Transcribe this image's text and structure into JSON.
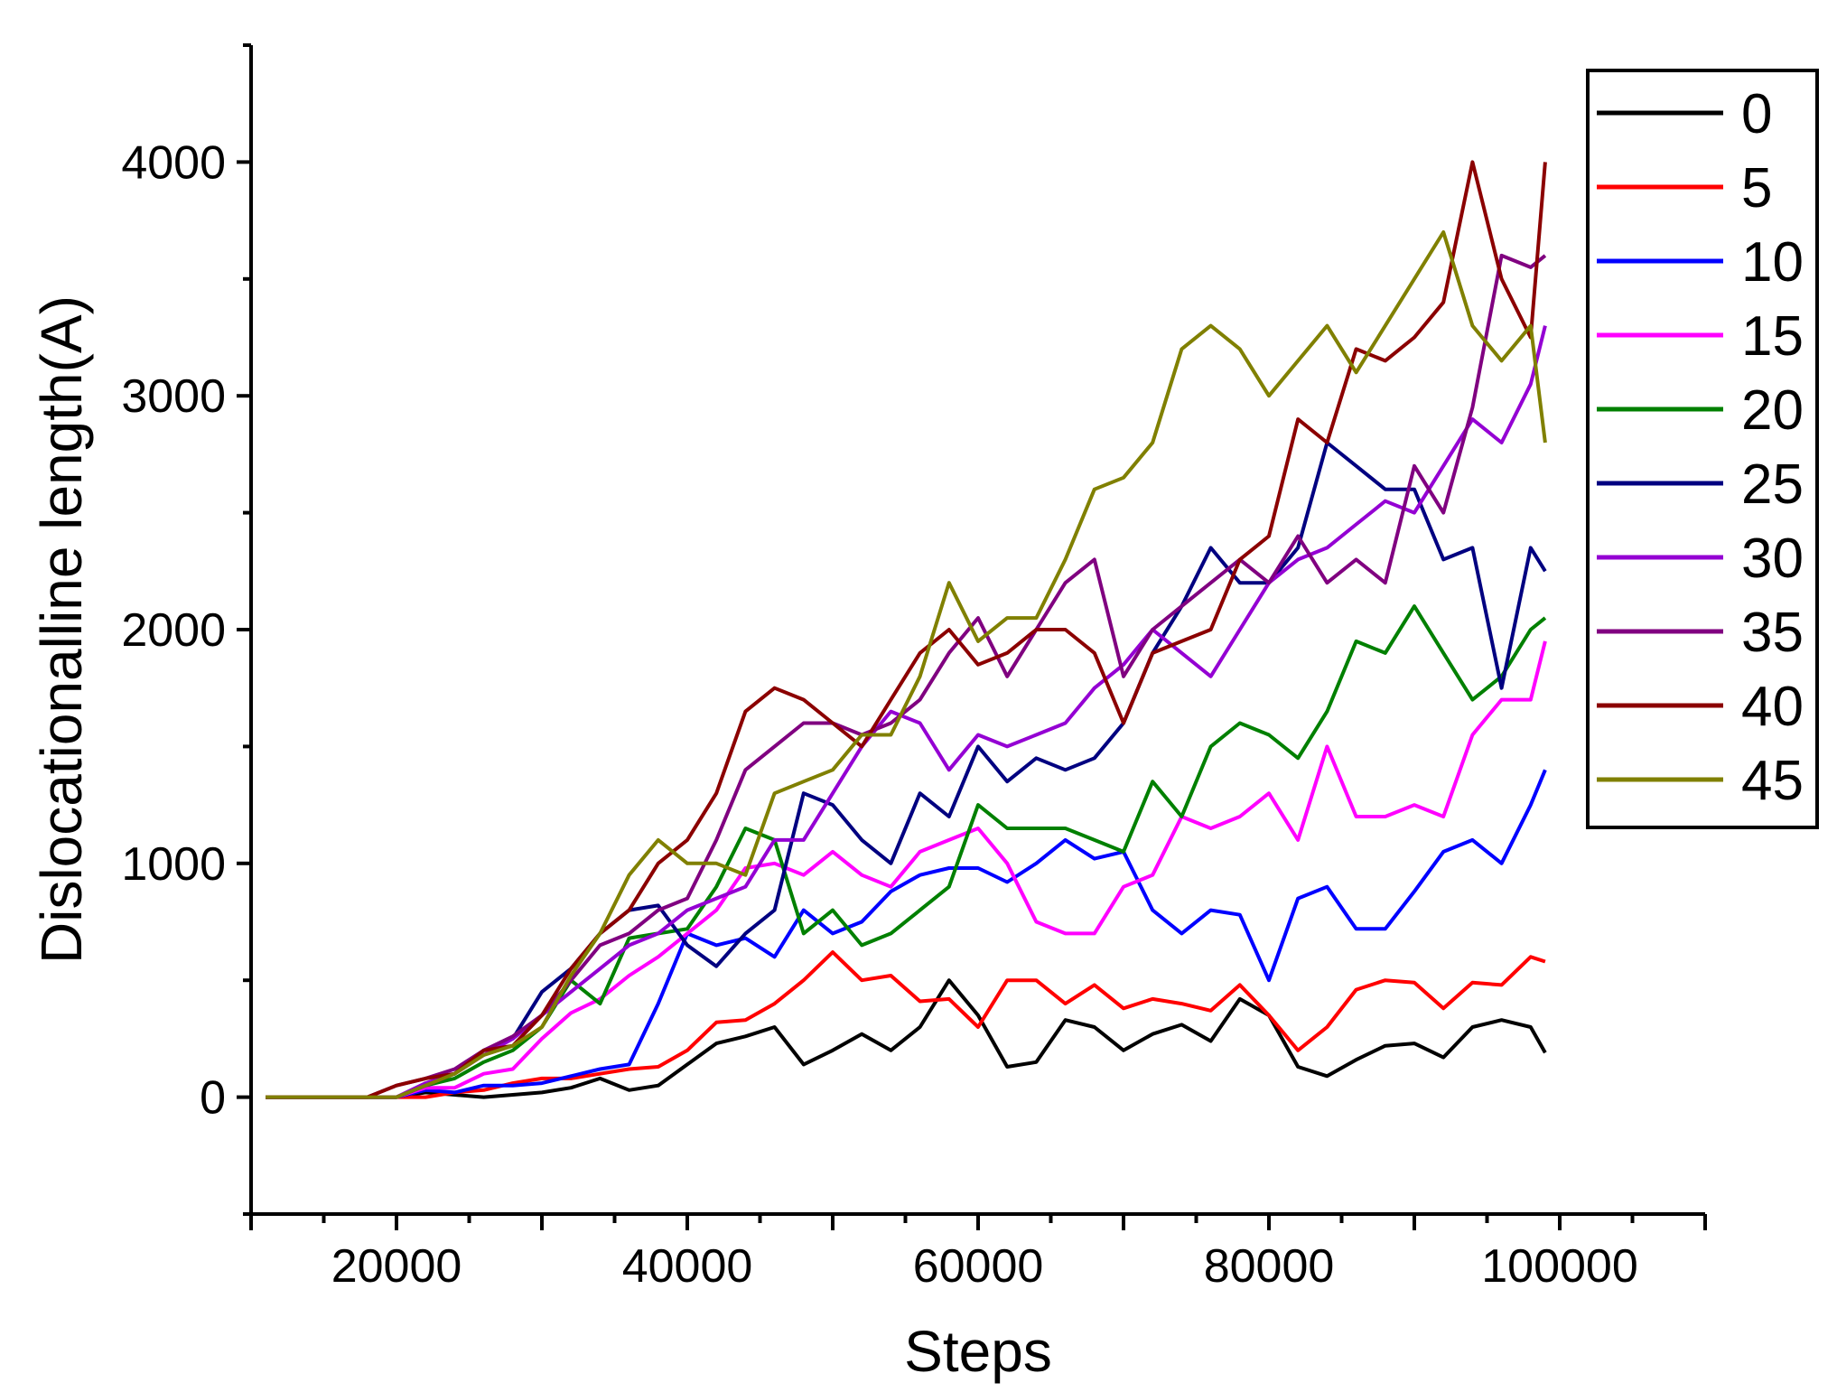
{
  "chart_data": {
    "type": "line",
    "xlabel": "Steps",
    "ylabel": "Dislocationalline length(A)",
    "xlim": [
      10000,
      110000
    ],
    "ylim": [
      -500,
      4500
    ],
    "x_ticks": [
      "20000",
      "40000",
      "60000",
      "80000",
      "100000"
    ],
    "y_ticks": [
      "0",
      "1000",
      "2000",
      "3000",
      "4000"
    ],
    "grid": false,
    "legend_position": "top-right",
    "x": [
      11000,
      18000,
      20000,
      22000,
      24000,
      26000,
      28000,
      30000,
      32000,
      34000,
      36000,
      38000,
      40000,
      42000,
      44000,
      46000,
      48000,
      50000,
      52000,
      54000,
      56000,
      58000,
      60000,
      62000,
      64000,
      66000,
      68000,
      70000,
      72000,
      74000,
      76000,
      78000,
      80000,
      82000,
      84000,
      86000,
      88000,
      90000,
      92000,
      94000,
      96000,
      98000,
      99000
    ],
    "series": [
      {
        "name": "0",
        "color": "#000000",
        "values": [
          0,
          0,
          0,
          20,
          10,
          0,
          10,
          20,
          40,
          80,
          30,
          50,
          140,
          230,
          260,
          300,
          140,
          200,
          270,
          200,
          300,
          500,
          350,
          130,
          150,
          330,
          300,
          200,
          270,
          310,
          240,
          420,
          350,
          130,
          90,
          160,
          220,
          230,
          170,
          300,
          330,
          300,
          190
        ]
      },
      {
        "name": "5",
        "color": "#ff0000",
        "values": [
          0,
          0,
          0,
          0,
          20,
          30,
          60,
          80,
          80,
          100,
          120,
          130,
          200,
          320,
          330,
          400,
          500,
          620,
          500,
          520,
          410,
          420,
          300,
          500,
          500,
          400,
          480,
          380,
          420,
          400,
          370,
          480,
          350,
          200,
          300,
          460,
          500,
          490,
          380,
          490,
          480,
          600,
          580
        ]
      },
      {
        "name": "10",
        "color": "#0000ff",
        "values": [
          0,
          0,
          0,
          30,
          20,
          50,
          50,
          60,
          90,
          120,
          140,
          400,
          700,
          650,
          680,
          600,
          800,
          700,
          750,
          880,
          950,
          980,
          980,
          920,
          1000,
          1100,
          1020,
          1050,
          800,
          700,
          800,
          780,
          500,
          850,
          900,
          720,
          720,
          880,
          1050,
          1100,
          1000,
          1250,
          1400
        ]
      },
      {
        "name": "15",
        "color": "#ff00ff",
        "values": [
          0,
          0,
          0,
          40,
          40,
          100,
          120,
          250,
          360,
          420,
          520,
          600,
          700,
          800,
          980,
          1000,
          950,
          1050,
          950,
          900,
          1050,
          1100,
          1150,
          1000,
          750,
          700,
          700,
          900,
          950,
          1200,
          1150,
          1200,
          1300,
          1100,
          1500,
          1200,
          1200,
          1250,
          1200,
          1550,
          1700,
          1700,
          1950
        ]
      },
      {
        "name": "20",
        "color": "#008000",
        "values": [
          0,
          0,
          0,
          50,
          80,
          150,
          200,
          300,
          500,
          400,
          680,
          700,
          720,
          900,
          1150,
          1100,
          700,
          800,
          650,
          700,
          800,
          900,
          1250,
          1150,
          1150,
          1150,
          1100,
          1050,
          1350,
          1200,
          1500,
          1600,
          1550,
          1450,
          1650,
          1950,
          1900,
          2100,
          1900,
          1700,
          1800,
          2000,
          2050
        ]
      },
      {
        "name": "25",
        "color": "#000080",
        "values": [
          0,
          0,
          0,
          50,
          100,
          200,
          250,
          450,
          550,
          700,
          800,
          820,
          650,
          560,
          700,
          800,
          1300,
          1250,
          1100,
          1000,
          1300,
          1200,
          1500,
          1350,
          1450,
          1400,
          1450,
          1600,
          1900,
          2100,
          2350,
          2200,
          2200,
          2350,
          2800,
          2700,
          2600,
          2600,
          2300,
          2350,
          1750,
          2350,
          2250
        ]
      },
      {
        "name": "30",
        "color": "#9400d3",
        "values": [
          0,
          0,
          0,
          60,
          100,
          180,
          250,
          350,
          450,
          550,
          650,
          700,
          800,
          850,
          900,
          1100,
          1100,
          1300,
          1500,
          1650,
          1600,
          1400,
          1550,
          1500,
          1550,
          1600,
          1750,
          1850,
          2000,
          1900,
          1800,
          2000,
          2200,
          2300,
          2350,
          2450,
          2550,
          2500,
          2700,
          2900,
          2800,
          3050,
          3300
        ]
      },
      {
        "name": "35",
        "color": "#800080",
        "values": [
          0,
          0,
          50,
          80,
          120,
          200,
          260,
          350,
          500,
          650,
          700,
          800,
          850,
          1100,
          1400,
          1500,
          1600,
          1600,
          1550,
          1600,
          1700,
          1900,
          2050,
          1800,
          2000,
          2200,
          2300,
          1800,
          2000,
          2100,
          2200,
          2300,
          2200,
          2400,
          2200,
          2300,
          2200,
          2700,
          2500,
          2950,
          3600,
          3550,
          3600
        ]
      },
      {
        "name": "40",
        "color": "#8b0000",
        "values": [
          0,
          0,
          50,
          80,
          100,
          200,
          220,
          350,
          550,
          700,
          800,
          1000,
          1100,
          1300,
          1650,
          1750,
          1700,
          1600,
          1500,
          1700,
          1900,
          2000,
          1850,
          1900,
          2000,
          2000,
          1900,
          1600,
          1900,
          1950,
          2000,
          2300,
          2400,
          2900,
          2800,
          3200,
          3150,
          3250,
          3400,
          4000,
          3500,
          3250,
          4000
        ]
      },
      {
        "name": "45",
        "color": "#808000",
        "values": [
          0,
          0,
          0,
          50,
          100,
          180,
          220,
          300,
          520,
          700,
          950,
          1100,
          1000,
          1000,
          950,
          1300,
          1350,
          1400,
          1550,
          1550,
          1800,
          2200,
          1950,
          2050,
          2050,
          2300,
          2600,
          2650,
          2800,
          3200,
          3300,
          3200,
          3000,
          3150,
          3300,
          3100,
          3300,
          3500,
          3700,
          3300,
          3150,
          3300,
          2800
        ]
      }
    ]
  }
}
